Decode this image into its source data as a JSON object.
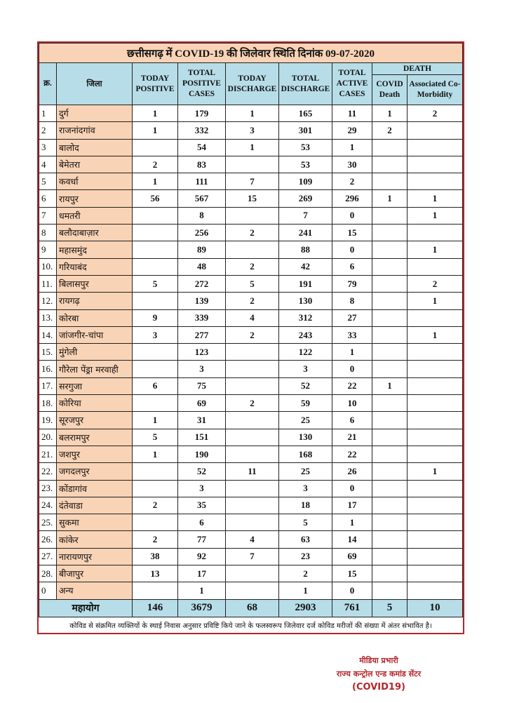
{
  "title": "छत्तीसगढ़ में COVID-19 की जिलेवार स्थिति दिनांक 09-07-2020",
  "headers": {
    "sr": "क्र.",
    "district": "जिला",
    "today_positive": "TODAY POSITIVE",
    "total_positive": "TOTAL POSITIVE CASES",
    "today_discharge": "TODAY DISCHARGE",
    "total_discharge": "TOTAL DISCHARGE",
    "active": "TOTAL ACTIVE CASES",
    "death": "DEATH",
    "covid_death": "COVID Death",
    "comorbidity": "Associated Co-Morbidity"
  },
  "rows": [
    [
      "1",
      "दुर्ग",
      "1",
      "179",
      "1",
      "165",
      "11",
      "1",
      "2"
    ],
    [
      "2",
      "राजनांदगांव",
      "1",
      "332",
      "3",
      "301",
      "29",
      "2",
      ""
    ],
    [
      "3",
      "बालोद",
      "",
      "54",
      "1",
      "53",
      "1",
      "",
      ""
    ],
    [
      "4",
      "बेमेतरा",
      "2",
      "83",
      "",
      "53",
      "30",
      "",
      ""
    ],
    [
      "5",
      "कवर्धा",
      "1",
      "111",
      "7",
      "109",
      "2",
      "",
      ""
    ],
    [
      "6",
      "रायपुर",
      "56",
      "567",
      "15",
      "269",
      "296",
      "1",
      "1"
    ],
    [
      "7",
      "धमतरी",
      "",
      "8",
      "",
      "7",
      "0",
      "",
      "1"
    ],
    [
      "8",
      "बलौदाबाज़ार",
      "",
      "256",
      "2",
      "241",
      "15",
      "",
      ""
    ],
    [
      "9",
      "महासमुंद",
      "",
      "89",
      "",
      "88",
      "0",
      "",
      "1"
    ],
    [
      "10.",
      "गरियाबंद",
      "",
      "48",
      "2",
      "42",
      "6",
      "",
      ""
    ],
    [
      "11.",
      "बिलासपुर",
      "5",
      "272",
      "5",
      "191",
      "79",
      "",
      "2"
    ],
    [
      "12.",
      "रायगढ़",
      "",
      "139",
      "2",
      "130",
      "8",
      "",
      "1"
    ],
    [
      "13.",
      "कोरबा",
      "9",
      "339",
      "4",
      "312",
      "27",
      "",
      ""
    ],
    [
      "14.",
      "जांजगीर-चांपा",
      "3",
      "277",
      "2",
      "243",
      "33",
      "",
      "1"
    ],
    [
      "15.",
      "मुंगेली",
      "",
      "123",
      "",
      "122",
      "1",
      "",
      ""
    ],
    [
      "16.",
      "गौरेला पेंड्रा मरवाही",
      "",
      "3",
      "",
      "3",
      "0",
      "",
      ""
    ],
    [
      "17.",
      "सरगुजा",
      "6",
      "75",
      "",
      "52",
      "22",
      "1",
      ""
    ],
    [
      "18.",
      "कोरिया",
      "",
      "69",
      "2",
      "59",
      "10",
      "",
      ""
    ],
    [
      "19.",
      "सूरजपुर",
      "1",
      "31",
      "",
      "25",
      "6",
      "",
      ""
    ],
    [
      "20.",
      "बलरामपुर",
      "5",
      "151",
      "",
      "130",
      "21",
      "",
      ""
    ],
    [
      "21.",
      "जशपुर",
      "1",
      "190",
      "",
      "168",
      "22",
      "",
      ""
    ],
    [
      "22.",
      "जगदलपुर",
      "",
      "52",
      "11",
      "25",
      "26",
      "",
      "1"
    ],
    [
      "23.",
      "कोंडागांव",
      "",
      "3",
      "",
      "3",
      "0",
      "",
      ""
    ],
    [
      "24.",
      "दंतेवाडा",
      "2",
      "35",
      "",
      "18",
      "17",
      "",
      ""
    ],
    [
      "25.",
      "सुकमा",
      "",
      "6",
      "",
      "5",
      "1",
      "",
      ""
    ],
    [
      "26.",
      "कांकेर",
      "2",
      "77",
      "4",
      "63",
      "14",
      "",
      ""
    ],
    [
      "27.",
      "नारायणपुर",
      "38",
      "92",
      "7",
      "23",
      "69",
      "",
      ""
    ],
    [
      "28.",
      "बीजापुर",
      "13",
      "17",
      "",
      "2",
      "15",
      "",
      ""
    ],
    [
      "0",
      "अन्य",
      "",
      "1",
      "",
      "1",
      "0",
      "",
      ""
    ]
  ],
  "total": {
    "label": "महायोग",
    "today_positive": "146",
    "total_positive": "3679",
    "today_discharge": "68",
    "total_discharge": "2903",
    "active": "761",
    "covid_death": "5",
    "comorbidity": "10"
  },
  "note": "कोविड से संक्रमित व्यक्तियों के स्थाई निवास अनुसार प्रविष्टि किये जाने के फलस्वरूप जिलेवार दर्ज कोविड मरीजों की संख्या में अंतर संभावित है।",
  "signature": {
    "line1": "मीडिया प्रभारी",
    "line2": "राज्य कन्ट्रोल एन्ड कमांड सेंटर",
    "line3": "(COVID19)"
  },
  "colors": {
    "border": "#b3262a",
    "header_bg": "#b7dde8",
    "district_bg": "#f9d3b6"
  }
}
